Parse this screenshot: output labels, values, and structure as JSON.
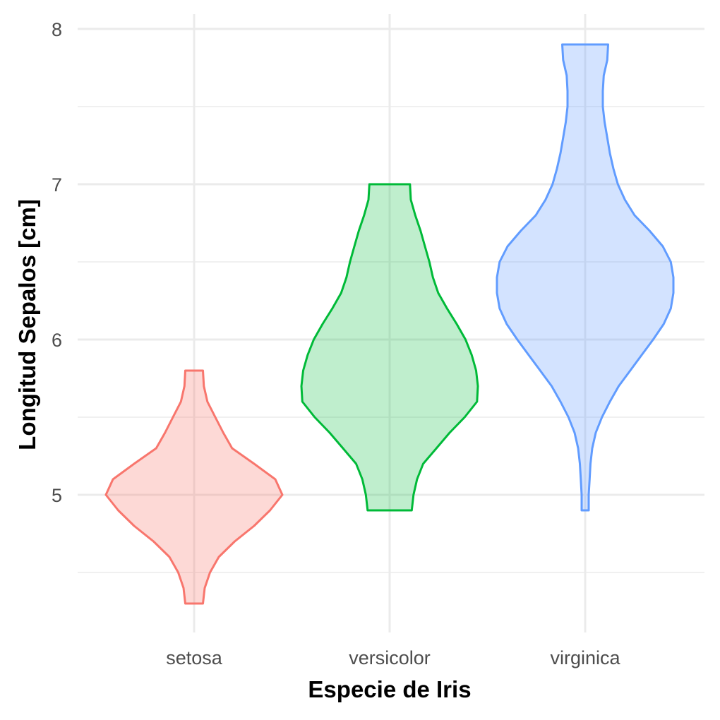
{
  "chart_data": {
    "type": "violin",
    "title": "",
    "xlabel": "Especie de Iris",
    "ylabel": "Longitud Sepalos [cm]",
    "categories": [
      "setosa",
      "versicolor",
      "virginica"
    ],
    "ylim": [
      4.2,
      8.1
    ],
    "yticks": [
      5,
      6,
      7,
      8
    ],
    "yticks_minor": [
      4.5,
      5.5,
      6.5,
      7.5
    ],
    "grid": true,
    "legend": "none",
    "series": [
      {
        "name": "setosa",
        "color": "#F8766D",
        "fill": "#F8766D",
        "fill_opacity": 0.28,
        "min": 4.3,
        "max": 5.8,
        "profile": [
          [
            4.3,
            0.1
          ],
          [
            4.4,
            0.12
          ],
          [
            4.5,
            0.18
          ],
          [
            4.6,
            0.28
          ],
          [
            4.7,
            0.46
          ],
          [
            4.8,
            0.68
          ],
          [
            4.9,
            0.86
          ],
          [
            5.0,
            1.0
          ],
          [
            5.1,
            0.92
          ],
          [
            5.2,
            0.68
          ],
          [
            5.3,
            0.43
          ],
          [
            5.4,
            0.33
          ],
          [
            5.5,
            0.24
          ],
          [
            5.6,
            0.15
          ],
          [
            5.7,
            0.11
          ],
          [
            5.8,
            0.1
          ]
        ]
      },
      {
        "name": "versicolor",
        "color": "#00BA38",
        "fill": "#00BA38",
        "fill_opacity": 0.25,
        "min": 4.9,
        "max": 7.0,
        "profile": [
          [
            4.9,
            0.25
          ],
          [
            5.0,
            0.27
          ],
          [
            5.1,
            0.31
          ],
          [
            5.2,
            0.38
          ],
          [
            5.3,
            0.53
          ],
          [
            5.4,
            0.68
          ],
          [
            5.5,
            0.85
          ],
          [
            5.6,
            0.99
          ],
          [
            5.7,
            1.0
          ],
          [
            5.8,
            0.98
          ],
          [
            5.9,
            0.93
          ],
          [
            6.0,
            0.86
          ],
          [
            6.1,
            0.76
          ],
          [
            6.2,
            0.65
          ],
          [
            6.3,
            0.55
          ],
          [
            6.4,
            0.49
          ],
          [
            6.5,
            0.45
          ],
          [
            6.6,
            0.4
          ],
          [
            6.7,
            0.35
          ],
          [
            6.8,
            0.29
          ],
          [
            6.9,
            0.24
          ],
          [
            7.0,
            0.23
          ]
        ]
      },
      {
        "name": "virginica",
        "color": "#619CFF",
        "fill": "#619CFF",
        "fill_opacity": 0.28,
        "min": 4.9,
        "max": 7.9,
        "profile": [
          [
            4.9,
            0.04
          ],
          [
            5.0,
            0.04
          ],
          [
            5.1,
            0.05
          ],
          [
            5.2,
            0.06
          ],
          [
            5.3,
            0.08
          ],
          [
            5.4,
            0.12
          ],
          [
            5.5,
            0.19
          ],
          [
            5.6,
            0.28
          ],
          [
            5.7,
            0.38
          ],
          [
            5.8,
            0.51
          ],
          [
            5.9,
            0.64
          ],
          [
            6.0,
            0.77
          ],
          [
            6.1,
            0.89
          ],
          [
            6.2,
            0.97
          ],
          [
            6.3,
            1.0
          ],
          [
            6.4,
            1.0
          ],
          [
            6.5,
            0.97
          ],
          [
            6.6,
            0.88
          ],
          [
            6.7,
            0.73
          ],
          [
            6.8,
            0.56
          ],
          [
            6.9,
            0.45
          ],
          [
            7.0,
            0.37
          ],
          [
            7.1,
            0.32
          ],
          [
            7.2,
            0.28
          ],
          [
            7.3,
            0.25
          ],
          [
            7.4,
            0.22
          ],
          [
            7.5,
            0.2
          ],
          [
            7.6,
            0.2
          ],
          [
            7.7,
            0.21
          ],
          [
            7.8,
            0.25
          ],
          [
            7.9,
            0.26
          ]
        ]
      }
    ]
  }
}
